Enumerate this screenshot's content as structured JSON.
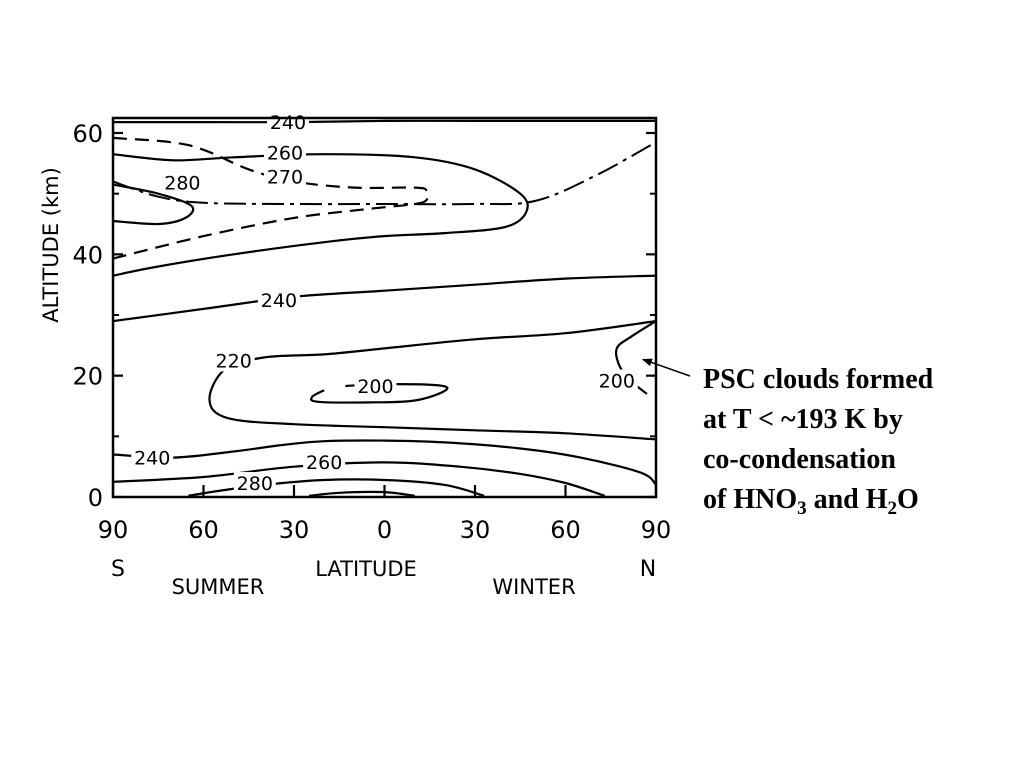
{
  "chart_data": {
    "type": "contour",
    "xlabel": "LATITUDE",
    "ylabel": "ALTITUDE (km)",
    "xlim": [
      -90,
      90
    ],
    "ylim": [
      0,
      62
    ],
    "x_ticks": [
      {
        "value": -90,
        "label": "90"
      },
      {
        "value": -60,
        "label": "60"
      },
      {
        "value": -30,
        "label": "30"
      },
      {
        "value": 0,
        "label": "0"
      },
      {
        "value": 30,
        "label": "30"
      },
      {
        "value": 60,
        "label": "60"
      },
      {
        "value": 90,
        "label": "90"
      }
    ],
    "y_ticks": [
      {
        "value": 0,
        "label": "0"
      },
      {
        "value": 20,
        "label": "20"
      },
      {
        "value": 40,
        "label": "40"
      },
      {
        "value": 60,
        "label": "60"
      }
    ],
    "hemisphere_labels": {
      "south": "S",
      "north": "N"
    },
    "season_labels": {
      "left": "SUMMER",
      "right": "WINTER"
    },
    "contours": [
      {
        "level": "240",
        "style": "solid",
        "label_at": [
          -32,
          61.8
        ],
        "points": [
          [
            -90,
            61.8
          ],
          [
            -60,
            61.8
          ],
          [
            -30,
            61.8
          ],
          [
            0,
            62
          ],
          [
            30,
            62
          ],
          [
            60,
            62
          ],
          [
            90,
            62
          ]
        ]
      },
      {
        "level": "260",
        "style": "solid",
        "label_at": [
          -33,
          56.8
        ],
        "points": [
          [
            -90,
            56.5
          ],
          [
            -70,
            55.5
          ],
          [
            -50,
            56
          ],
          [
            -20,
            56.5
          ],
          [
            10,
            56
          ],
          [
            30,
            54
          ],
          [
            45,
            50
          ],
          [
            47,
            47
          ],
          [
            40,
            44.5
          ],
          [
            20,
            43.5
          ],
          [
            0,
            43
          ],
          [
            -20,
            42
          ],
          [
            -50,
            40
          ],
          [
            -75,
            38
          ],
          [
            -90,
            36.5
          ]
        ]
      },
      {
        "level": "270",
        "style": "dashed",
        "label_at": [
          -33,
          52.8
        ],
        "points": [
          [
            -90,
            59.2
          ],
          [
            -65,
            58
          ],
          [
            -45,
            54
          ],
          [
            -30,
            52
          ],
          [
            -10,
            51
          ],
          [
            10,
            51
          ],
          [
            14,
            50.5
          ],
          [
            14,
            49
          ],
          [
            10,
            48.3
          ],
          [
            -5,
            47.5
          ],
          [
            -30,
            46
          ],
          [
            -60,
            43
          ],
          [
            -90,
            39.3
          ]
        ]
      },
      {
        "level": "280",
        "style": "solid",
        "label_at": [
          -67,
          51.8
        ],
        "points": [
          [
            -90,
            51.5
          ],
          [
            -75,
            50
          ],
          [
            -64,
            48
          ],
          [
            -66,
            46
          ],
          [
            -75,
            45
          ],
          [
            -90,
            45.5
          ]
        ]
      },
      {
        "level": "240",
        "style": "solid",
        "label_at": [
          -35,
          32.5
        ],
        "points": [
          [
            -90,
            29
          ],
          [
            -60,
            31
          ],
          [
            -30,
            33
          ],
          [
            0,
            34
          ],
          [
            30,
            35
          ],
          [
            60,
            36
          ],
          [
            90,
            36.5
          ]
        ]
      },
      {
        "level": "220",
        "style": "solid",
        "label_at": [
          -50,
          22.5
        ],
        "points": [
          [
            90,
            29
          ],
          [
            60,
            27
          ],
          [
            30,
            26
          ],
          [
            0,
            24.5
          ],
          [
            -20,
            23.5
          ],
          [
            -40,
            23
          ],
          [
            -53,
            21
          ],
          [
            -58,
            16
          ],
          [
            -52,
            13
          ],
          [
            -30,
            12
          ],
          [
            0,
            11.5
          ],
          [
            30,
            11
          ],
          [
            60,
            10.5
          ],
          [
            90,
            9.5
          ]
        ]
      },
      {
        "level": "200",
        "style": "solid",
        "label_at": [
          -3,
          18.3
        ],
        "points": [
          [
            -13,
            18.3
          ],
          [
            0,
            18.6
          ],
          [
            18,
            18.4
          ],
          [
            20,
            17.5
          ],
          [
            10,
            15.9
          ],
          [
            -5,
            15.6
          ],
          [
            -22,
            15.7
          ],
          [
            -24,
            16.5
          ],
          [
            -20,
            17.6
          ]
        ]
      },
      {
        "level": "200",
        "style": "solid",
        "label_at": [
          77,
          19.2
        ],
        "points": [
          [
            90,
            29
          ],
          [
            82,
            26.5
          ],
          [
            77,
            24.5
          ],
          [
            78,
            21.5
          ],
          [
            82,
            19
          ],
          [
            87,
            17
          ]
        ]
      },
      {
        "level": "240",
        "style": "solid",
        "label_at": [
          -77,
          6.5
        ],
        "points": [
          [
            -90,
            7
          ],
          [
            -70,
            6.5
          ],
          [
            -50,
            7.5
          ],
          [
            -35,
            8.5
          ],
          [
            -20,
            9.2
          ],
          [
            0,
            9.3
          ],
          [
            20,
            9
          ],
          [
            45,
            8
          ],
          [
            65,
            6.5
          ],
          [
            85,
            4
          ],
          [
            90,
            2
          ]
        ]
      },
      {
        "level": "260",
        "style": "solid",
        "label_at": [
          -20,
          5.8
        ],
        "points": [
          [
            -90,
            2.5
          ],
          [
            -60,
            3.3
          ],
          [
            -30,
            5
          ],
          [
            0,
            5.7
          ],
          [
            25,
            5
          ],
          [
            45,
            3.8
          ],
          [
            60,
            2.3
          ],
          [
            73,
            0.2
          ]
        ]
      },
      {
        "level": "280",
        "style": "solid",
        "label_at": [
          -43,
          2.3
        ],
        "points": [
          [
            -65,
            0.2
          ],
          [
            -55,
            1
          ],
          [
            -40,
            2
          ],
          [
            -20,
            2.8
          ],
          [
            0,
            2.8
          ],
          [
            20,
            2
          ],
          [
            33,
            0.2
          ]
        ]
      },
      {
        "level": "",
        "style": "solid",
        "label_at": null,
        "points": [
          [
            -25,
            0.2
          ],
          [
            -15,
            0.7
          ],
          [
            0,
            0.8
          ],
          [
            10,
            0.2
          ]
        ]
      }
    ],
    "dash_dot_line": {
      "style": "dash-dot",
      "points": [
        [
          -90,
          52
        ],
        [
          -75,
          49.5
        ],
        [
          -60,
          48.5
        ],
        [
          -30,
          48.3
        ],
        [
          0,
          48.3
        ],
        [
          30,
          48.3
        ],
        [
          50,
          48.8
        ],
        [
          70,
          53
        ],
        [
          90,
          58.5
        ]
      ]
    },
    "annotation": {
      "points_to": [
        83,
        23
      ],
      "lines": [
        {
          "text": "PSC clouds formed"
        },
        {
          "text": "at T < ~193 K by"
        },
        {
          "text": "co-condensation"
        },
        {
          "parts": [
            {
              "t": "of HNO"
            },
            {
              "t": "3",
              "sub": true
            },
            {
              "t": " and H"
            },
            {
              "t": "2",
              "sub": true
            },
            {
              "t": "O"
            }
          ]
        }
      ]
    }
  }
}
